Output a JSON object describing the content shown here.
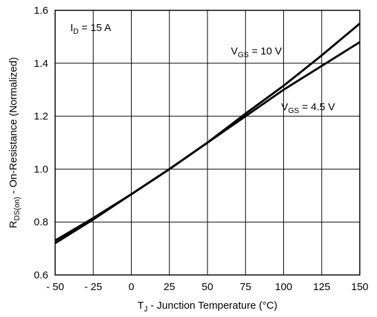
{
  "chart_data": {
    "type": "line",
    "title": "",
    "xlabel": {
      "main": "T",
      "sub": "J",
      "rest": " - Junction Temperature (°C)"
    },
    "ylabel": {
      "main": "R",
      "sub": "DS(on)",
      "rest": " - On-Resistance (Normalized)"
    },
    "xlim": [
      -50,
      150
    ],
    "ylim": [
      0.6,
      1.6
    ],
    "xticks": [
      -50,
      -25,
      0,
      25,
      50,
      75,
      100,
      125,
      150
    ],
    "xtick_labels": [
      "- 50",
      "- 25",
      "0",
      "25",
      "50",
      "75",
      "100",
      "125",
      "150"
    ],
    "yticks": [
      0.6,
      0.8,
      1.0,
      1.2,
      1.4,
      1.6
    ],
    "ytick_labels": [
      "0.6",
      "0.8",
      "1.0",
      "1.2",
      "1.4",
      "1.6"
    ],
    "grid": true,
    "annotations": [
      {
        "main": "I",
        "sub": "D",
        "rest": " = 15 A"
      }
    ],
    "series": [
      {
        "name": {
          "main": "V",
          "sub": "GS",
          "rest": " = 10 V"
        },
        "x": [
          -50,
          -25,
          0,
          25,
          50,
          75,
          100,
          125,
          150
        ],
        "y": [
          0.72,
          0.81,
          0.905,
          1.0,
          1.1,
          1.21,
          1.315,
          1.43,
          1.55
        ]
      },
      {
        "name": {
          "main": "V",
          "sub": "GS",
          "rest": " = 4.5 V"
        },
        "x": [
          -50,
          -25,
          0,
          25,
          50,
          75,
          100,
          125,
          150
        ],
        "y": [
          0.73,
          0.815,
          0.905,
          1.0,
          1.1,
          1.2,
          1.3,
          1.39,
          1.48
        ]
      }
    ]
  }
}
